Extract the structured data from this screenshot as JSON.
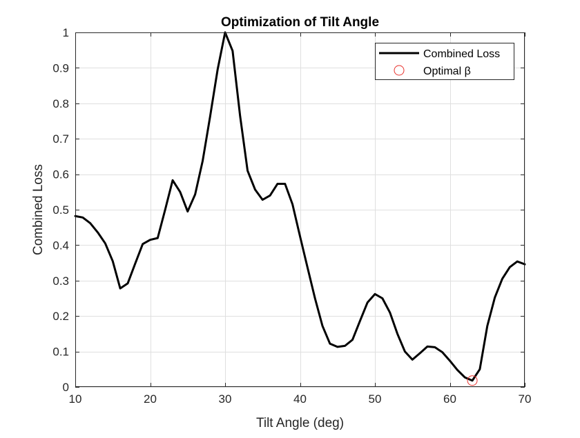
{
  "chart_data": {
    "type": "line",
    "title": "Optimization of Tilt Angle",
    "xlabel": "Tilt Angle (deg)",
    "ylabel": "Combined Loss",
    "xlim": [
      10,
      70
    ],
    "ylim": [
      0,
      1
    ],
    "xticks": [
      "10",
      "20",
      "30",
      "40",
      "50",
      "60",
      "70"
    ],
    "xtick_values": [
      10,
      20,
      30,
      40,
      50,
      60,
      70
    ],
    "yticks": [
      "0",
      "0.1",
      "0.2",
      "0.3",
      "0.4",
      "0.5",
      "0.6",
      "0.7",
      "0.8",
      "0.9",
      "1"
    ],
    "ytick_values": [
      0,
      0.1,
      0.2,
      0.3,
      0.4,
      0.5,
      0.6,
      0.7,
      0.8,
      0.9,
      1
    ],
    "grid": true,
    "legend_position": "top-right",
    "series": [
      {
        "name": "Combined Loss",
        "color": "#000000",
        "x": [
          10,
          11,
          12,
          13,
          14,
          15,
          16,
          17,
          18,
          19,
          20,
          21,
          22,
          23,
          24,
          25,
          26,
          27,
          28,
          29,
          30,
          31,
          32,
          33,
          34,
          35,
          36,
          37,
          38,
          39,
          40,
          41,
          42,
          43,
          44,
          45,
          46,
          47,
          48,
          49,
          50,
          51,
          52,
          53,
          54,
          55,
          56,
          57,
          58,
          59,
          60,
          61,
          62,
          63,
          64,
          65,
          66,
          67,
          68,
          69,
          70
        ],
        "y": [
          0.482,
          0.478,
          0.462,
          0.436,
          0.405,
          0.355,
          0.278,
          0.292,
          0.348,
          0.403,
          0.415,
          0.42,
          0.5,
          0.583,
          0.55,
          0.495,
          0.543,
          0.637,
          0.763,
          0.895,
          1.0,
          0.948,
          0.765,
          0.61,
          0.557,
          0.528,
          0.54,
          0.573,
          0.573,
          0.515,
          0.425,
          0.337,
          0.25,
          0.172,
          0.122,
          0.113,
          0.116,
          0.133,
          0.186,
          0.238,
          0.262,
          0.25,
          0.21,
          0.15,
          0.1,
          0.077,
          0.095,
          0.114,
          0.112,
          0.098,
          0.074,
          0.048,
          0.027,
          0.018,
          0.05,
          0.172,
          0.252,
          0.305,
          0.338,
          0.354,
          0.346
        ]
      },
      {
        "name": "Optimal β",
        "color": "#e8302b",
        "marker": "circle",
        "x": [
          63
        ],
        "y": [
          0.018
        ]
      }
    ]
  }
}
